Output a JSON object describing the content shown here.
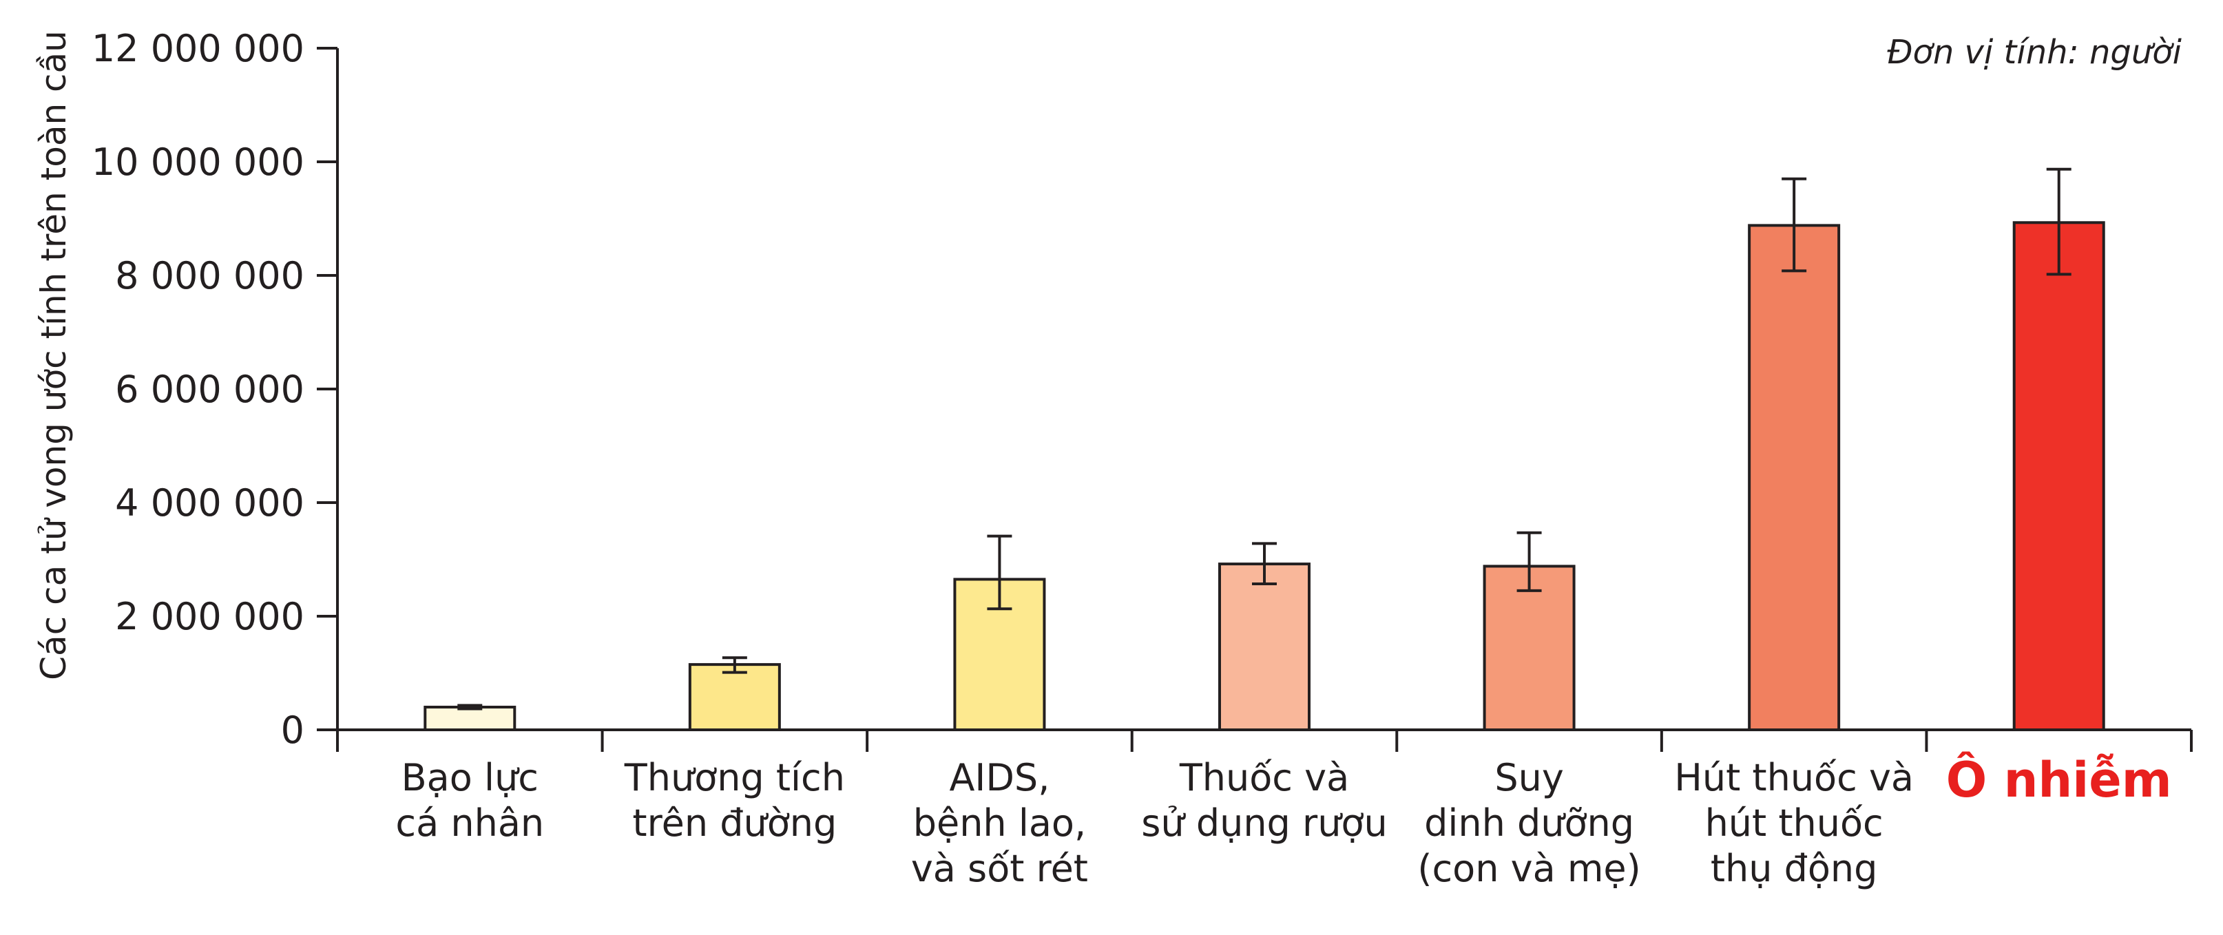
{
  "chart_data": {
    "type": "bar",
    "ylabel": "Các ca tử vong ước tính trên toàn cầu",
    "unit_note": "Đơn vị tính: người",
    "ylim": [
      0,
      12000000
    ],
    "y_ticks": [
      0,
      2000000,
      4000000,
      6000000,
      8000000,
      10000000,
      12000000
    ],
    "y_tick_labels": [
      "0",
      "2 000 000",
      "4 000 000",
      "6 000 000",
      "8 000 000",
      "10 000 000",
      "12 000 000"
    ],
    "grid": false,
    "categories": [
      [
        "Bạo lực",
        "cá nhân"
      ],
      [
        "Thương tích",
        "trên đường"
      ],
      [
        "AIDS,",
        "bệnh lao,",
        "và sốt rét"
      ],
      [
        "Thuốc và",
        "sử dụng rượu"
      ],
      [
        "Suy",
        "dinh dưỡng",
        "(con và mẹ)"
      ],
      [
        "Hút thuốc và",
        "hút thuốc",
        "thụ động"
      ],
      [
        "Ô nhiễm"
      ]
    ],
    "values": [
      400000,
      1150000,
      2650000,
      2920000,
      2880000,
      8880000,
      8930000
    ],
    "error_low": [
      370000,
      1010000,
      2130000,
      2570000,
      2450000,
      8080000,
      8020000
    ],
    "error_high": [
      430000,
      1270000,
      3410000,
      3280000,
      3470000,
      9700000,
      9870000
    ],
    "colors": [
      "#fef8dc",
      "#fde78a",
      "#fde98f",
      "#f9b79a",
      "#f59a78",
      "#f1805f",
      "#ee3128"
    ],
    "highlight_category_index": 6,
    "highlight_color": "#e8201e"
  }
}
